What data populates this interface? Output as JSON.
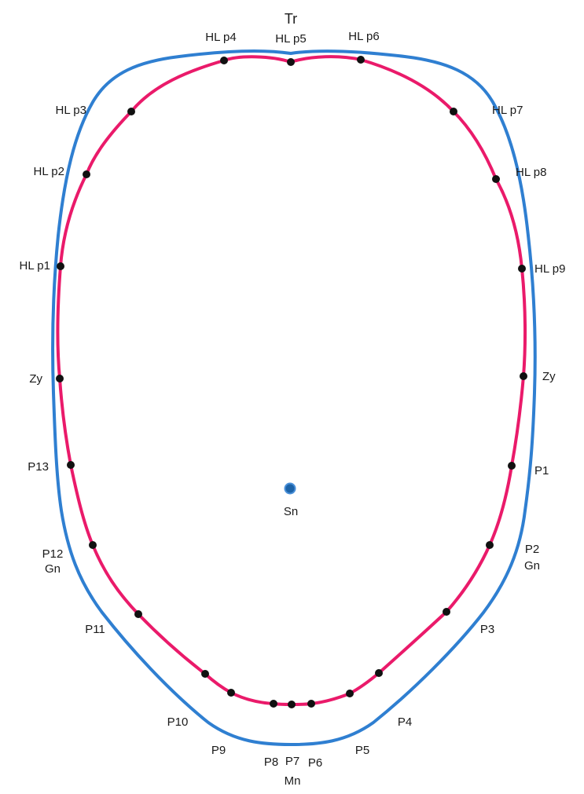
{
  "colors": {
    "outer_contour": "#2f7fd1",
    "inner_contour": "#ea1a6a",
    "landmark_point": "#111111",
    "center_point": "#1c63a8",
    "label_text": "#1a1a1a"
  },
  "labels": {
    "tr": "Tr",
    "hl_p1": "HL p1",
    "hl_p2": "HL p2",
    "hl_p3": "HL p3",
    "hl_p4": "HL p4",
    "hl_p5": "HL p5",
    "hl_p6": "HL p6",
    "hl_p7": "HL p7",
    "hl_p8": "HL p8",
    "hl_p9": "HL p9",
    "zy_left": "Zy",
    "zy_right": "Zy",
    "p1": "P1",
    "p2": "P2",
    "gn_right": "Gn",
    "p3": "P3",
    "p4": "P4",
    "p5": "P5",
    "p6": "P6",
    "p7": "P7",
    "mn": "Mn",
    "p8": "P8",
    "p9": "P9",
    "p10": "P10",
    "p11": "P11",
    "p12": "P12",
    "gn_left": "Gn",
    "p13": "P13",
    "sn": "Sn"
  }
}
